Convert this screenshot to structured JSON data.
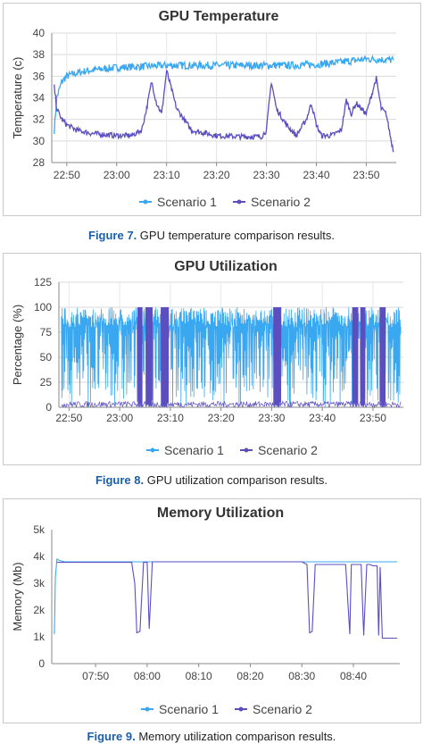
{
  "chart_data": [
    {
      "type": "line",
      "title": "GPU Temperature",
      "ylabel": "Temperature (c)",
      "xlabel": "",
      "ylim": [
        28,
        40
      ],
      "yticks": [
        28,
        30,
        32,
        34,
        36,
        38,
        40
      ],
      "xlim": [
        1367,
        1436
      ],
      "xticks": [
        {
          "v": 1370,
          "label": "22:50"
        },
        {
          "v": 1380,
          "label": "23:00"
        },
        {
          "v": 1390,
          "label": "23:10"
        },
        {
          "v": 1400,
          "label": "23:20"
        },
        {
          "v": 1410,
          "label": "23:30"
        },
        {
          "v": 1420,
          "label": "23:40"
        },
        {
          "v": 1430,
          "label": "23:50"
        }
      ],
      "grid": true,
      "legend": "bottom-center",
      "series": [
        {
          "name": "Scenario 1",
          "color": "#3aa8f0",
          "x": [
            1367.5,
            1368,
            1369,
            1370,
            1372,
            1374,
            1376,
            1378,
            1380,
            1385,
            1390,
            1395,
            1400,
            1405,
            1410,
            1415,
            1420,
            1425,
            1430,
            1435.5
          ],
          "y": [
            31,
            34,
            35.5,
            36,
            36.3,
            36.5,
            36.6,
            36.7,
            36.8,
            36.9,
            37,
            37,
            37,
            37,
            37,
            37,
            37.1,
            37.3,
            37.6,
            37.5
          ]
        },
        {
          "name": "Scenario 2",
          "color": "#5b4fc0",
          "x": [
            1367.5,
            1368,
            1369,
            1370,
            1372,
            1375,
            1380,
            1383,
            1385,
            1386,
            1387,
            1388,
            1389,
            1390,
            1392,
            1395,
            1400,
            1405,
            1409,
            1410,
            1411,
            1412,
            1414,
            1416,
            1418,
            1419,
            1420,
            1421,
            1423,
            1425,
            1426,
            1427,
            1428,
            1430,
            1432,
            1433,
            1434,
            1435,
            1435.5
          ],
          "y": [
            35,
            33,
            32,
            31.5,
            31,
            30.7,
            30.5,
            30.5,
            31,
            33,
            35.5,
            33.5,
            32.5,
            36.5,
            33,
            31,
            30.5,
            30.4,
            30.4,
            31,
            35.5,
            33,
            31.5,
            30.5,
            32,
            33.5,
            31.5,
            30.5,
            30.5,
            31,
            33.8,
            32.5,
            33.5,
            32.5,
            35.8,
            33,
            32.5,
            30,
            29
          ]
        }
      ]
    },
    {
      "type": "line",
      "title": "GPU Utilization",
      "ylabel": "Percentage (%)",
      "xlabel": "",
      "ylim": [
        0,
        125
      ],
      "yticks": [
        0,
        25,
        50,
        75,
        100,
        125
      ],
      "xlim": [
        1368,
        1436
      ],
      "xticks": [
        {
          "v": 1370,
          "label": "22:50"
        },
        {
          "v": 1380,
          "label": "23:00"
        },
        {
          "v": 1390,
          "label": "23:10"
        },
        {
          "v": 1400,
          "label": "23:20"
        },
        {
          "v": 1410,
          "label": "23:30"
        },
        {
          "v": 1420,
          "label": "23:40"
        },
        {
          "v": 1430,
          "label": "23:50"
        }
      ],
      "grid": true,
      "legend": "bottom-center",
      "series": [
        {
          "name": "Scenario 1",
          "color": "#3aa8f0",
          "x_range": [
            1368.5,
            1435.5
          ],
          "min": 0,
          "max": 100
        },
        {
          "name": "Scenario 2",
          "color": "#5b4fc0",
          "bursts": [
            [
              1383.6,
              1384.4
            ],
            [
              1385.2,
              1386.4
            ],
            [
              1388.2,
              1389.6
            ],
            [
              1410.4,
              1411.8
            ],
            [
              1426,
              1427
            ],
            [
              1427.6,
              1428.4
            ],
            [
              1431.4,
              1432.4
            ]
          ],
          "min": 0,
          "max": 100
        }
      ]
    },
    {
      "type": "line",
      "title": "Memory Utilization",
      "ylabel": "Memory (Mb)",
      "xlabel": "",
      "ylim": [
        0,
        5000
      ],
      "yticks": [
        {
          "v": 0,
          "label": "0"
        },
        {
          "v": 1000,
          "label": "1k"
        },
        {
          "v": 2000,
          "label": "2k"
        },
        {
          "v": 3000,
          "label": "3k"
        },
        {
          "v": 4000,
          "label": "4k"
        },
        {
          "v": 5000,
          "label": "5k"
        }
      ],
      "xlim": [
        461.5,
        529
      ],
      "xticks": [
        {
          "v": 470,
          "label": "07:50"
        },
        {
          "v": 480,
          "label": "08:00"
        },
        {
          "v": 490,
          "label": "08:10"
        },
        {
          "v": 500,
          "label": "08:20"
        },
        {
          "v": 510,
          "label": "08:30"
        },
        {
          "v": 520,
          "label": "08:40"
        }
      ],
      "grid": false,
      "legend": "bottom-center",
      "series": [
        {
          "name": "Scenario 1",
          "color": "#3aa8f0",
          "x": [
            462,
            462.2,
            462.5,
            463,
            464,
            470,
            480,
            490,
            500,
            510,
            520,
            528.5
          ],
          "y": [
            1100,
            3200,
            3900,
            3850,
            3800,
            3800,
            3800,
            3800,
            3800,
            3800,
            3800,
            3800
          ]
        },
        {
          "name": "Scenario 2",
          "color": "#5b4fc0",
          "x": [
            462.5,
            464,
            477,
            477.6,
            478,
            478.6,
            479.3,
            480,
            480.4,
            481,
            510,
            511,
            511.5,
            512,
            512.6,
            513,
            518.5,
            519.3,
            519.6,
            520,
            520.3,
            521.5,
            522,
            522.6,
            523.2,
            523.8,
            524.6,
            524.9,
            525.2,
            525.6,
            528.5
          ],
          "y": [
            3780,
            3780,
            3780,
            3000,
            1150,
            1200,
            3780,
            3780,
            1300,
            3800,
            3800,
            3700,
            1150,
            1200,
            3700,
            3700,
            3700,
            1100,
            3700,
            3700,
            3700,
            3700,
            1050,
            3700,
            3700,
            3650,
            3650,
            1050,
            3600,
            950,
            950
          ]
        }
      ]
    }
  ],
  "captions": [
    {
      "fig": "Figure 7.",
      "text": " GPU temperature comparison results."
    },
    {
      "fig": "Figure 8.",
      "text": " GPU utilization comparison results."
    },
    {
      "fig": "Figure 9.",
      "text": " Memory utilization comparison results."
    }
  ]
}
